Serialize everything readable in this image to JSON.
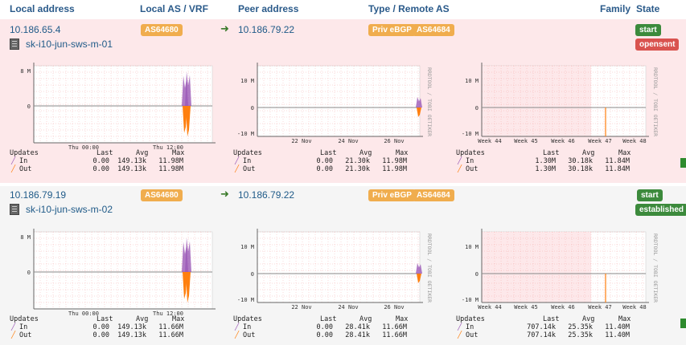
{
  "header": {
    "local_address": "Local address",
    "local_as": "Local AS / VRF",
    "peer_address": "Peer address",
    "type_remote_as": "Type / Remote AS",
    "family": "Family",
    "state": "State"
  },
  "rows": [
    {
      "local_ip": "10.186.65.4",
      "hostname": "sk-i10-jun-sws-m-01",
      "local_as": "AS64680",
      "peer_ip": "10.186.79.22",
      "peer_type": "Priv eBGP",
      "remote_as": "AS64684",
      "admin_state": "start",
      "bgp_state": "opensent",
      "graphs": [
        {
          "ytop": "8 M",
          "ymid": "0",
          "ybot": "",
          "xlabels": [
            "Thu 00:00",
            "Thu 12:00"
          ],
          "watermark": "RRDTOOL / TOBI OETIKER",
          "legend": {
            "updates": "Updates",
            "last": "Last",
            "avg": "Avg",
            "max": "Max",
            "in": "In",
            "out": "Out",
            "in_last": "0.00",
            "in_avg": "149.13k",
            "in_max": "11.98M",
            "out_last": "0.00",
            "out_avg": "149.13k",
            "out_max": "11.98M"
          }
        },
        {
          "ytop": "10 M",
          "ymid": "0",
          "ybot": "-10 M",
          "xlabels": [
            "22 Nov",
            "24 Nov",
            "26 Nov"
          ],
          "watermark": "RRDTOOL / TOBI OETIKER",
          "legend": {
            "updates": "Updates",
            "last": "Last",
            "avg": "Avg",
            "max": "Max",
            "in": "In",
            "out": "Out",
            "in_last": "0.00",
            "in_avg": "21.30k",
            "in_max": "11.98M",
            "out_last": "0.00",
            "out_avg": "21.30k",
            "out_max": "11.98M"
          }
        },
        {
          "ytop": "10 M",
          "ymid": "0",
          "ybot": "-10 M",
          "xlabels": [
            "Week 44",
            "Week 45",
            "Week 46",
            "Week 47",
            "Week 48"
          ],
          "watermark": "RRDTOOL / TOBI OETIKER",
          "legend": {
            "updates": "Updates",
            "last": "Last",
            "avg": "Avg",
            "max": "Max",
            "in": "In",
            "out": "Out",
            "in_last": "1.30M",
            "in_avg": "30.18k",
            "in_max": "11.84M",
            "out_last": "1.30M",
            "out_avg": "30.18k",
            "out_max": "11.84M"
          }
        }
      ]
    },
    {
      "local_ip": "10.186.79.19",
      "hostname": "sk-i10-jun-sws-m-02",
      "local_as": "AS64680",
      "peer_ip": "10.186.79.22",
      "peer_type": "Priv eBGP",
      "remote_as": "AS64684",
      "admin_state": "start",
      "bgp_state": "established",
      "graphs": [
        {
          "ytop": "8 M",
          "ymid": "0",
          "ybot": "",
          "xlabels": [
            "Thu 00:00",
            "Thu 12:00"
          ],
          "watermark": "RRDTOOL / TOBI OETIKER",
          "legend": {
            "updates": "Updates",
            "last": "Last",
            "avg": "Avg",
            "max": "Max",
            "in": "In",
            "out": "Out",
            "in_last": "0.00",
            "in_avg": "149.13k",
            "in_max": "11.66M",
            "out_last": "0.00",
            "out_avg": "149.13k",
            "out_max": "11.66M"
          }
        },
        {
          "ytop": "10 M",
          "ymid": "0",
          "ybot": "-10 M",
          "xlabels": [
            "22 Nov",
            "24 Nov",
            "26 Nov"
          ],
          "watermark": "RRDTOOL / TOBI OETIKER",
          "legend": {
            "updates": "Updates",
            "last": "Last",
            "avg": "Avg",
            "max": "Max",
            "in": "In",
            "out": "Out",
            "in_last": "0.00",
            "in_avg": "28.41k",
            "in_max": "11.66M",
            "out_last": "0.00",
            "out_avg": "28.41k",
            "out_max": "11.66M"
          }
        },
        {
          "ytop": "10 M",
          "ymid": "0",
          "ybot": "-10 M",
          "xlabels": [
            "Week 44",
            "Week 45",
            "Week 46",
            "Week 47",
            "Week 48"
          ],
          "watermark": "RRDTOOL / TOBI OETIKER",
          "legend": {
            "updates": "Updates",
            "last": "Last",
            "avg": "Avg",
            "max": "Max",
            "in": "In",
            "out": "Out",
            "in_last": "707.14k",
            "in_avg": "25.35k",
            "in_max": "11.40M",
            "out_last": "707.14k",
            "out_avg": "25.35k",
            "out_max": "11.40M"
          }
        }
      ]
    }
  ],
  "colors": {
    "in": "#9b59b6",
    "out": "#ff7f0e",
    "grid": "#f4a0a0",
    "badge": "#f0ad4e",
    "green": "#3c8a3c",
    "red": "#d9534f"
  }
}
